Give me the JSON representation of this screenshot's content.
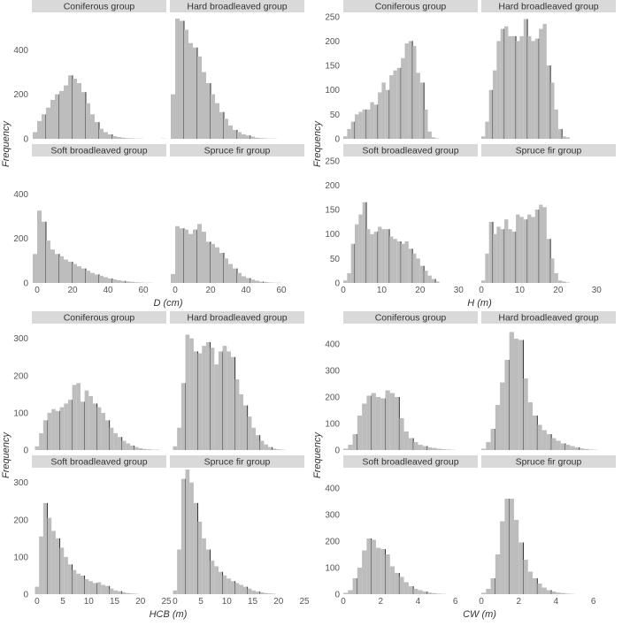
{
  "chart_data": [
    {
      "type": "bar",
      "variable": "D",
      "xlabel": "D (cm)",
      "ylabel": "Frequency",
      "xticks": [
        0,
        20,
        40,
        60
      ],
      "xlim": [
        -3,
        73
      ],
      "ylim": [
        0,
        560
      ],
      "yticks": [
        0,
        200,
        400
      ],
      "bin_width": 2.5,
      "bin_start": 0,
      "colors": {
        "bar": "#bdbdbd",
        "panel_header": "#d9d9d9"
      },
      "panels": [
        {
          "title": "Coniferous group",
          "values": [
            30,
            80,
            110,
            140,
            175,
            200,
            215,
            240,
            285,
            270,
            250,
            210,
            160,
            110,
            75,
            45,
            30,
            20,
            12,
            8,
            5,
            3,
            2,
            1,
            1,
            0,
            0,
            0,
            0,
            1
          ]
        },
        {
          "title": "Hard broadleaved group",
          "values": [
            200,
            540,
            530,
            490,
            430,
            410,
            370,
            300,
            250,
            200,
            160,
            120,
            90,
            60,
            40,
            30,
            20,
            15,
            10,
            5,
            3,
            2,
            1,
            1
          ]
        },
        {
          "title": "Soft broadleaved group",
          "values": [
            130,
            325,
            275,
            190,
            150,
            130,
            120,
            105,
            95,
            85,
            75,
            65,
            55,
            45,
            38,
            32,
            26,
            20,
            16,
            12,
            9,
            7,
            5,
            3,
            2,
            1,
            1
          ]
        },
        {
          "title": "Spruce fir group",
          "values": [
            40,
            255,
            245,
            240,
            220,
            240,
            265,
            230,
            185,
            175,
            160,
            135,
            110,
            85,
            65,
            45,
            30,
            22,
            15,
            10,
            6,
            4,
            2,
            1,
            1
          ]
        }
      ]
    },
    {
      "type": "bar",
      "variable": "H",
      "xlabel": "H (m)",
      "ylabel": "Frequency",
      "xticks": [
        0,
        10,
        20,
        30
      ],
      "xlim": [
        0,
        35
      ],
      "ylim": [
        0,
        255
      ],
      "yticks": [
        0,
        50,
        100,
        150,
        200,
        250
      ],
      "bin_width": 1,
      "bin_start": 1,
      "colors": {
        "bar": "#bdbdbd",
        "panel_header": "#d9d9d9"
      },
      "panels": [
        {
          "title": "Coniferous group",
          "values": [
            5,
            20,
            35,
            50,
            55,
            60,
            60,
            75,
            70,
            95,
            115,
            100,
            130,
            140,
            145,
            165,
            195,
            200,
            190,
            135,
            115,
            60,
            15,
            3,
            1
          ]
        },
        {
          "title": "Hard broadleaved group",
          "values": [
            5,
            35,
            100,
            140,
            200,
            225,
            230,
            210,
            210,
            200,
            210,
            245,
            210,
            200,
            205,
            225,
            235,
            150,
            115,
            60,
            20,
            5,
            3
          ]
        },
        {
          "title": "Soft broadleaved group",
          "values": [
            5,
            20,
            80,
            120,
            140,
            165,
            110,
            100,
            105,
            115,
            110,
            110,
            95,
            90,
            85,
            80,
            85,
            70,
            60,
            50,
            35,
            25,
            15,
            8,
            3
          ]
        },
        {
          "title": "Spruce fir group",
          "values": [
            5,
            60,
            125,
            100,
            115,
            110,
            130,
            110,
            105,
            140,
            135,
            130,
            140,
            135,
            150,
            160,
            155,
            90,
            50,
            20,
            5,
            3,
            1
          ]
        }
      ]
    },
    {
      "type": "bar",
      "variable": "HCB",
      "xlabel": "HCB (m)",
      "ylabel": "Frequency",
      "xticks": [
        0,
        5,
        10,
        15,
        20,
        25
      ],
      "xlim": [
        -1,
        25
      ],
      "ylim": [
        0,
        335
      ],
      "yticks": [
        0,
        100,
        200,
        300
      ],
      "bin_width": 0.8,
      "bin_start": 0.4,
      "colors": {
        "bar": "#bdbdbd",
        "panel_header": "#d9d9d9"
      },
      "panels": [
        {
          "title": "Coniferous group",
          "values": [
            10,
            45,
            80,
            100,
            110,
            105,
            115,
            125,
            135,
            175,
            180,
            130,
            160,
            145,
            125,
            115,
            100,
            80,
            60,
            45,
            35,
            25,
            18,
            12,
            8,
            5,
            3,
            2,
            1,
            1
          ]
        },
        {
          "title": "Hard broadleaved group",
          "values": [
            10,
            60,
            180,
            310,
            300,
            265,
            260,
            280,
            290,
            275,
            230,
            265,
            280,
            265,
            250,
            190,
            150,
            120,
            90,
            60,
            40,
            25,
            15,
            8,
            4,
            2,
            1
          ]
        },
        {
          "title": "Soft broadleaved group",
          "values": [
            20,
            155,
            245,
            205,
            170,
            150,
            125,
            100,
            80,
            65,
            55,
            50,
            40,
            35,
            30,
            32,
            25,
            22,
            15,
            10,
            8,
            5,
            3,
            2,
            1
          ]
        },
        {
          "title": "Spruce fir group",
          "values": [
            10,
            120,
            310,
            345,
            300,
            245,
            195,
            150,
            120,
            90,
            75,
            60,
            50,
            42,
            35,
            30,
            25,
            20,
            15,
            10,
            7,
            5,
            3,
            2,
            1
          ]
        }
      ]
    },
    {
      "type": "bar",
      "variable": "CW",
      "xlabel": "CW (m)",
      "ylabel": "Frequency",
      "xticks": [
        0,
        2,
        4,
        6
      ],
      "xlim": [
        0,
        7.2
      ],
      "ylim": [
        0,
        470
      ],
      "yticks": [
        0,
        100,
        200,
        300,
        400
      ],
      "bin_width": 0.25,
      "bin_start": 0.25,
      "colors": {
        "bar": "#bdbdbd",
        "panel_header": "#d9d9d9"
      },
      "panels": [
        {
          "title": "Coniferous group",
          "values": [
            5,
            20,
            60,
            130,
            175,
            205,
            215,
            200,
            195,
            225,
            215,
            200,
            120,
            70,
            45,
            30,
            20,
            15,
            10,
            8,
            5,
            3,
            2,
            1
          ]
        },
        {
          "title": "Hard broadleaved group",
          "values": [
            5,
            30,
            80,
            170,
            255,
            340,
            445,
            420,
            415,
            270,
            180,
            130,
            95,
            75,
            60,
            45,
            35,
            25,
            20,
            15,
            10,
            6,
            4,
            2,
            1
          ]
        },
        {
          "title": "Soft broadleaved group",
          "values": [
            5,
            15,
            60,
            100,
            165,
            210,
            205,
            175,
            170,
            150,
            105,
            80,
            65,
            45,
            30,
            20,
            15,
            10,
            6,
            4,
            2,
            1
          ]
        },
        {
          "title": "Spruce fir group",
          "values": [
            5,
            20,
            60,
            150,
            275,
            360,
            360,
            280,
            195,
            130,
            85,
            60,
            40,
            25,
            15,
            10,
            6,
            4,
            2,
            1
          ]
        }
      ]
    }
  ]
}
